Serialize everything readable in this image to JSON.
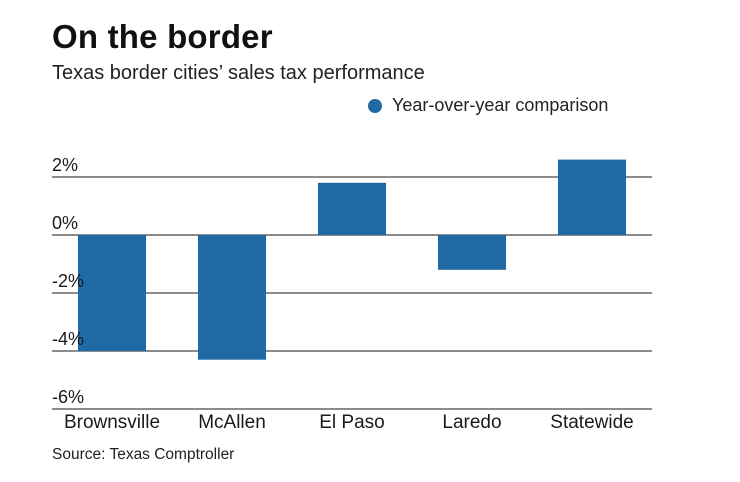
{
  "title": "On the border",
  "subtitle": "Texas border cities’ sales tax performance",
  "source": "Source: Texas Comptroller",
  "colors": {
    "bar": "#1f6aa5",
    "gridline": "#1a1a1a",
    "text": "#1a1a1a"
  },
  "chart_data": {
    "type": "bar",
    "title": "On the border",
    "subtitle": "Texas border cities’ sales tax performance",
    "categories": [
      "Brownsville",
      "McAllen",
      "El Paso",
      "Laredo",
      "Statewide"
    ],
    "series": [
      {
        "name": "Year-over-year comparison",
        "values": [
          -4.0,
          -4.3,
          1.8,
          -1.2,
          2.6
        ]
      }
    ],
    "ylim": [
      -6,
      2
    ],
    "yticks": [
      2,
      0,
      -2,
      -4,
      -6
    ],
    "ytick_labels": [
      "2%",
      "0%",
      "-2%",
      "-4%",
      "-6%"
    ],
    "xlabel": "",
    "ylabel": "",
    "grid": true,
    "legend_position": "top-right"
  }
}
